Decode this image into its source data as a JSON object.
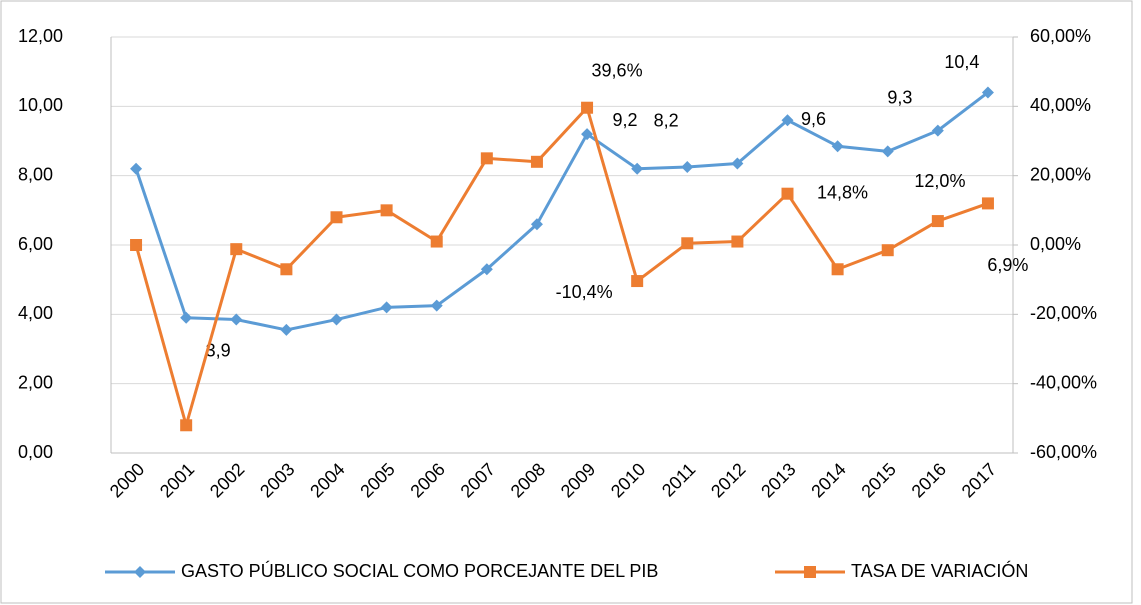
{
  "chart_data": {
    "type": "line",
    "categories": [
      "2000",
      "2001",
      "2002",
      "2003",
      "2004",
      "2005",
      "2006",
      "2007",
      "2008",
      "2009",
      "2010",
      "2011",
      "2012",
      "2013",
      "2014",
      "2015",
      "2016",
      "2017"
    ],
    "series": [
      {
        "name": "GASTO PÚBLICO SOCIAL COMO PORCEJANTE DEL PIB",
        "color": "#5b9bd5",
        "marker": "diamond",
        "values": [
          8.2,
          3.9,
          3.85,
          3.55,
          3.85,
          4.2,
          4.25,
          5.3,
          6.6,
          9.2,
          8.2,
          8.25,
          8.35,
          9.6,
          8.85,
          8.7,
          9.3,
          10.4
        ],
        "value_labels": [
          null,
          "3,9",
          null,
          null,
          null,
          null,
          null,
          null,
          null,
          "9,2",
          "8,2",
          null,
          null,
          "9,6",
          null,
          null,
          "9,3",
          "10,4"
        ]
      },
      {
        "name": "TASA DE VARIACIÓN",
        "color": "#ed7d31",
        "marker": "square",
        "axis": "y2",
        "values": [
          0,
          -52,
          -1.2,
          -7,
          8,
          10,
          1,
          25,
          24,
          39.6,
          -10.4,
          0.5,
          1,
          14.8,
          -7,
          -1.5,
          6.9,
          12.0
        ],
        "value_labels": [
          null,
          null,
          null,
          null,
          null,
          null,
          null,
          null,
          null,
          "39,6%",
          "-10,4%",
          null,
          null,
          "14,8%",
          null,
          null,
          "6,9%",
          "12,0%"
        ]
      }
    ],
    "ylim": [
      0,
      12
    ],
    "yticks": [
      {
        "value": 0,
        "label": "0,00"
      },
      {
        "value": 2,
        "label": "2,00"
      },
      {
        "value": 4,
        "label": "4,00"
      },
      {
        "value": 6,
        "label": "6,00"
      },
      {
        "value": 8,
        "label": "8,00"
      },
      {
        "value": 10,
        "label": "10,00"
      },
      {
        "value": 12,
        "label": "12,00"
      }
    ],
    "y2lim": [
      -60,
      60
    ],
    "y2ticks": [
      {
        "value": -60,
        "label": "-60,00%"
      },
      {
        "value": -40,
        "label": "-40,00%"
      },
      {
        "value": -20,
        "label": "-20,00%"
      },
      {
        "value": 0,
        "label": "0,00%"
      },
      {
        "value": 20,
        "label": "20,00%"
      },
      {
        "value": 40,
        "label": "40,00%"
      },
      {
        "value": 60,
        "label": "60,00%"
      }
    ],
    "grid": true,
    "legend": "bottom"
  }
}
